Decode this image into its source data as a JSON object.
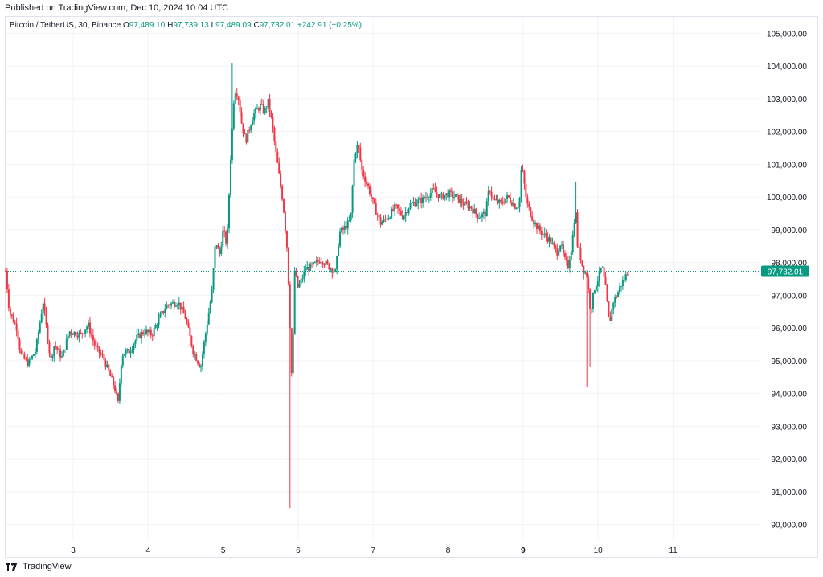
{
  "header": {
    "published": "Published on TradingView.com, Dec 10, 2024 10:04 UTC"
  },
  "legend": {
    "symbol": "Bitcoin / TetherUS, 30, Binance",
    "o_label": "O",
    "o": "97,489.10",
    "h_label": "H",
    "h": "97,739.13",
    "l_label": "L",
    "l": "97,489.09",
    "c_label": "C",
    "c": "97,732.01",
    "change": "+242.91 (+0.25%)"
  },
  "footer": {
    "brand": "TradingView"
  },
  "colors": {
    "up": "#089981",
    "down": "#f23645",
    "grid": "#f0f3fa",
    "axis_text": "#131722",
    "price_tag": "#089981"
  },
  "chart_data": {
    "type": "candlestick",
    "title": "Bitcoin / TetherUS, 30, Binance",
    "timeframe": "30",
    "last_price": 97732.01,
    "last_price_label": "97,732.01",
    "ylim": [
      89500,
      105500
    ],
    "yticks": [
      90000,
      91000,
      92000,
      93000,
      94000,
      95000,
      96000,
      97000,
      98000,
      99000,
      100000,
      101000,
      102000,
      103000,
      104000,
      105000
    ],
    "ytick_labels": [
      "90,000.00",
      "91,000.00",
      "92,000.00",
      "93,000.00",
      "94,000.00",
      "95,000.00",
      "96,000.00",
      "97,000.00",
      "98,000.00",
      "99,000.00",
      "100,000.00",
      "101,000.00",
      "102,000.00",
      "103,000.00",
      "104,000.00",
      "105,000.00"
    ],
    "xlim": [
      2.1,
      11.8
    ],
    "xticks": [
      3,
      4,
      5,
      6,
      7,
      8,
      9,
      10,
      11
    ],
    "xtick_labels": [
      "3",
      "4",
      "5",
      "6",
      "7",
      "8",
      "9",
      "10",
      "11"
    ],
    "bold_xtick": "9",
    "grid": true,
    "path": [
      [
        2.1,
        97750
      ],
      [
        2.15,
        96500
      ],
      [
        2.25,
        96000
      ],
      [
        2.3,
        95200
      ],
      [
        2.4,
        94900
      ],
      [
        2.5,
        95300
      ],
      [
        2.6,
        96800
      ],
      [
        2.7,
        95000
      ],
      [
        2.75,
        95500
      ],
      [
        2.85,
        95100
      ],
      [
        2.95,
        95900
      ],
      [
        3.1,
        95800
      ],
      [
        3.2,
        96100
      ],
      [
        3.3,
        95400
      ],
      [
        3.4,
        95100
      ],
      [
        3.45,
        94800
      ],
      [
        3.55,
        94200
      ],
      [
        3.6,
        93700
      ],
      [
        3.65,
        95200
      ],
      [
        3.75,
        95300
      ],
      [
        3.85,
        95700
      ],
      [
        3.95,
        95900
      ],
      [
        4.05,
        95800
      ],
      [
        4.15,
        96300
      ],
      [
        4.25,
        96700
      ],
      [
        4.4,
        96800
      ],
      [
        4.5,
        96300
      ],
      [
        4.6,
        95300
      ],
      [
        4.7,
        94800
      ],
      [
        4.75,
        95600
      ],
      [
        4.85,
        97100
      ],
      [
        4.9,
        98700
      ],
      [
        4.95,
        98200
      ],
      [
        5.0,
        99000
      ],
      [
        5.05,
        98500
      ],
      [
        5.1,
        101200
      ],
      [
        5.15,
        103300
      ],
      [
        5.2,
        103100
      ],
      [
        5.25,
        102200
      ],
      [
        5.3,
        101700
      ],
      [
        5.4,
        102500
      ],
      [
        5.5,
        102800
      ],
      [
        5.55,
        102600
      ],
      [
        5.6,
        102900
      ],
      [
        5.65,
        102300
      ],
      [
        5.7,
        101400
      ],
      [
        5.75,
        100600
      ],
      [
        5.8,
        99800
      ],
      [
        5.85,
        98500
      ],
      [
        5.88,
        96900
      ],
      [
        5.92,
        94100
      ],
      [
        5.95,
        97800
      ],
      [
        6.0,
        97200
      ],
      [
        6.05,
        97500
      ],
      [
        6.1,
        97800
      ],
      [
        6.2,
        97900
      ],
      [
        6.3,
        98100
      ],
      [
        6.45,
        97800
      ],
      [
        6.5,
        97700
      ],
      [
        6.55,
        98900
      ],
      [
        6.6,
        99000
      ],
      [
        6.7,
        99300
      ],
      [
        6.75,
        101300
      ],
      [
        6.8,
        101600
      ],
      [
        6.85,
        100800
      ],
      [
        6.95,
        100200
      ],
      [
        7.0,
        99800
      ],
      [
        7.1,
        99200
      ],
      [
        7.2,
        99400
      ],
      [
        7.3,
        99700
      ],
      [
        7.4,
        99400
      ],
      [
        7.5,
        99800
      ],
      [
        7.65,
        99900
      ],
      [
        7.8,
        100200
      ],
      [
        7.9,
        100000
      ],
      [
        8.0,
        100100
      ],
      [
        8.1,
        100000
      ],
      [
        8.2,
        99800
      ],
      [
        8.3,
        99700
      ],
      [
        8.4,
        99400
      ],
      [
        8.5,
        99500
      ],
      [
        8.55,
        100300
      ],
      [
        8.6,
        99900
      ],
      [
        8.7,
        99800
      ],
      [
        8.8,
        100000
      ],
      [
        8.9,
        99700
      ],
      [
        8.95,
        99800
      ],
      [
        8.98,
        101000
      ],
      [
        9.05,
        99800
      ],
      [
        9.15,
        99200
      ],
      [
        9.25,
        98900
      ],
      [
        9.35,
        98700
      ],
      [
        9.45,
        98300
      ],
      [
        9.5,
        98600
      ],
      [
        9.55,
        98100
      ],
      [
        9.6,
        97900
      ],
      [
        9.65,
        98500
      ],
      [
        9.7,
        99700
      ],
      [
        9.72,
        98600
      ],
      [
        9.8,
        97800
      ],
      [
        9.85,
        97600
      ],
      [
        9.9,
        96500
      ],
      [
        9.95,
        97200
      ],
      [
        10.0,
        97500
      ],
      [
        10.05,
        97900
      ],
      [
        10.1,
        97200
      ],
      [
        10.15,
        96100
      ],
      [
        10.2,
        96800
      ],
      [
        10.25,
        97000
      ],
      [
        10.3,
        97300
      ],
      [
        10.35,
        97500
      ],
      [
        10.4,
        97732
      ]
    ]
  }
}
